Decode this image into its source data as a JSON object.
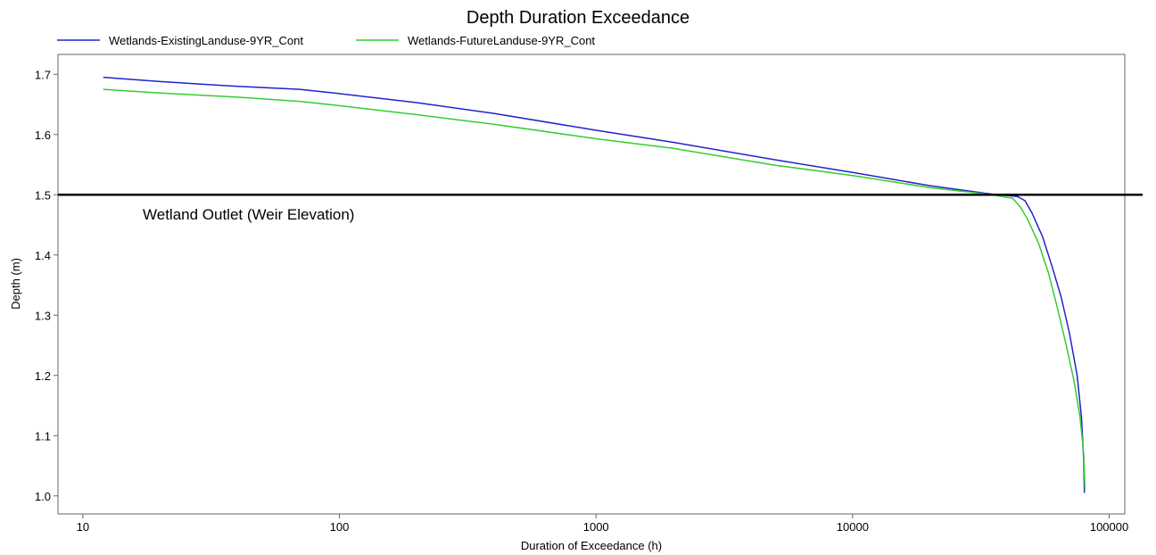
{
  "chart_data": {
    "type": "line",
    "title": "Depth Duration Exceedance",
    "xlabel": "Duration of Exceedance (h)",
    "ylabel": "Depth (m)",
    "xscale": "log",
    "xlim": [
      8,
      115000
    ],
    "ylim": [
      0.97,
      1.733
    ],
    "x_ticks": [
      10,
      100,
      1000,
      10000,
      100000
    ],
    "x_tick_labels": [
      "10",
      "100",
      "1000",
      "10000",
      "100000"
    ],
    "y_ticks": [
      1.0,
      1.1,
      1.2,
      1.3,
      1.4,
      1.5,
      1.6,
      1.7
    ],
    "y_tick_labels": [
      "1.0",
      "1.1",
      "1.2",
      "1.3",
      "1.4",
      "1.5",
      "1.6",
      "1.7"
    ],
    "grid": false,
    "legend_position": "top-left",
    "series": [
      {
        "name": "Wetlands-ExistingLanduse-9YR_Cont",
        "color": "#2222cc",
        "x": [
          12,
          20,
          40,
          70,
          100,
          200,
          400,
          1000,
          2000,
          5000,
          10000,
          20000,
          35000,
          44000,
          47000,
          50000,
          55000,
          60000,
          65000,
          70000,
          75000,
          78000,
          79500,
          80000
        ],
        "y": [
          1.695,
          1.688,
          1.68,
          1.675,
          1.668,
          1.653,
          1.635,
          1.607,
          1.587,
          1.558,
          1.537,
          1.515,
          1.501,
          1.497,
          1.49,
          1.47,
          1.43,
          1.38,
          1.33,
          1.27,
          1.2,
          1.13,
          1.06,
          1.005
        ]
      },
      {
        "name": "Wetlands-FutureLanduse-9YR_Cont",
        "color": "#33cc33",
        "x": [
          12,
          20,
          40,
          70,
          100,
          200,
          400,
          1000,
          2000,
          5000,
          10000,
          20000,
          35000,
          42000,
          45000,
          48000,
          53000,
          58000,
          63000,
          68000,
          73000,
          77000,
          79500,
          80500
        ],
        "y": [
          1.675,
          1.669,
          1.662,
          1.655,
          1.648,
          1.633,
          1.617,
          1.593,
          1.577,
          1.549,
          1.532,
          1.512,
          1.5,
          1.494,
          1.48,
          1.46,
          1.42,
          1.37,
          1.31,
          1.25,
          1.19,
          1.13,
          1.07,
          1.01
        ]
      }
    ],
    "reference_lines": [
      {
        "label": "Wetland Outlet (Weir Elevation)",
        "y": 1.5,
        "color": "#000000"
      }
    ]
  }
}
